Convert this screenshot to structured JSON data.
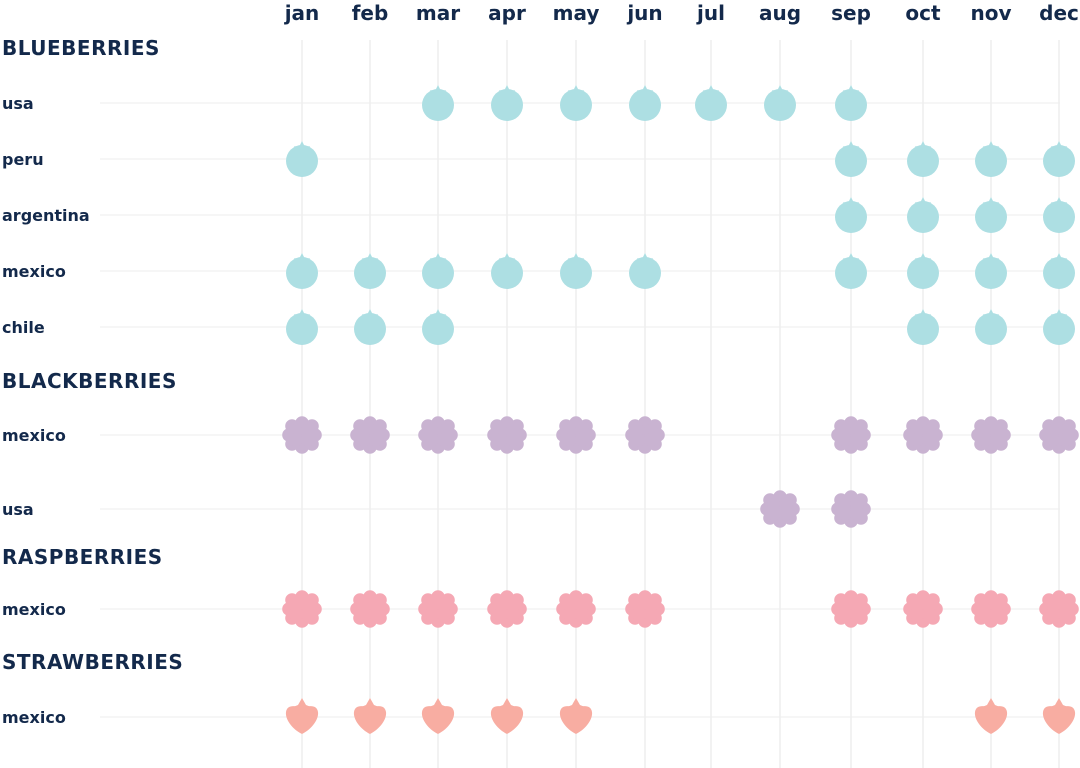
{
  "chart_data": {
    "type": "table",
    "months": [
      "jan",
      "feb",
      "mar",
      "apr",
      "may",
      "jun",
      "jul",
      "aug",
      "sep",
      "oct",
      "nov",
      "dec"
    ],
    "colors": {
      "blueberry": "#addfe3",
      "blackberry": "#c9b3d1",
      "raspberry": "#f5a8b4",
      "strawberry": "#f8ada2",
      "text": "#13294b",
      "grid": "#e6e6e6"
    },
    "sections": [
      {
        "title": "BLUEBERRIES",
        "fruit": "blueberry",
        "rows": [
          {
            "country": "usa",
            "months": [
              "mar",
              "apr",
              "may",
              "jun",
              "jul",
              "aug",
              "sep"
            ]
          },
          {
            "country": "peru",
            "months": [
              "jan",
              "sep",
              "oct",
              "nov",
              "dec"
            ]
          },
          {
            "country": "argentina",
            "months": [
              "sep",
              "oct",
              "nov",
              "dec"
            ]
          },
          {
            "country": "mexico",
            "months": [
              "jan",
              "feb",
              "mar",
              "apr",
              "may",
              "jun",
              "sep",
              "oct",
              "nov",
              "dec"
            ]
          },
          {
            "country": "chile",
            "months": [
              "jan",
              "feb",
              "mar",
              "oct",
              "nov",
              "dec"
            ]
          }
        ]
      },
      {
        "title": "BLACKBERRIES",
        "fruit": "blackberry",
        "rows": [
          {
            "country": "mexico",
            "months": [
              "jan",
              "feb",
              "mar",
              "apr",
              "may",
              "jun",
              "sep",
              "oct",
              "nov",
              "dec"
            ]
          },
          {
            "country": "usa",
            "months": [
              "aug",
              "sep"
            ]
          }
        ]
      },
      {
        "title": "RASPBERRIES",
        "fruit": "raspberry",
        "rows": [
          {
            "country": "mexico",
            "months": [
              "jan",
              "feb",
              "mar",
              "apr",
              "may",
              "jun",
              "sep",
              "oct",
              "nov",
              "dec"
            ]
          }
        ]
      },
      {
        "title": "STRAWBERRIES",
        "fruit": "strawberry",
        "rows": [
          {
            "country": "mexico",
            "months": [
              "jan",
              "feb",
              "mar",
              "apr",
              "may",
              "nov",
              "dec"
            ]
          }
        ]
      }
    ]
  }
}
